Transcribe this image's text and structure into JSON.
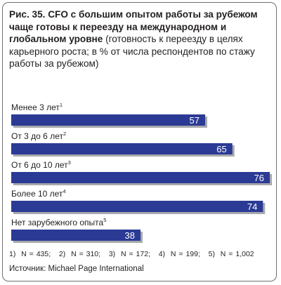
{
  "title": {
    "bold": "Рис. 35. CFO с большим опытом работы за рубежом чаще готовы к переезду на международном и глобальном уровне",
    "normal": " (готовность к переезду в целях карьерного роста; в % от числа респондентов по стажу работы за рубежом)"
  },
  "chart_data": {
    "type": "bar",
    "orientation": "horizontal",
    "categories": [
      "Менее 3 лет",
      "От 3 до 6 лет",
      "От 6 до 10 лет",
      "Более 10 лет",
      "Нет зарубежного опыта"
    ],
    "category_footnotes": [
      "1",
      "2",
      "3",
      "4",
      "5"
    ],
    "values": [
      57,
      65,
      76,
      74,
      38
    ],
    "xlim": [
      0,
      76
    ],
    "bar_color": "#2b3a94",
    "bar_shadow_color": "#a7a9ac",
    "value_label_color": "#ffffff",
    "grid": false,
    "legend": "none"
  },
  "footnotes": "1)  N = 435;   2)  N = 310;   3)  N = 172;   4)  N = 199;   5)  N = 1,002",
  "source": "Источник: Michael Page International"
}
